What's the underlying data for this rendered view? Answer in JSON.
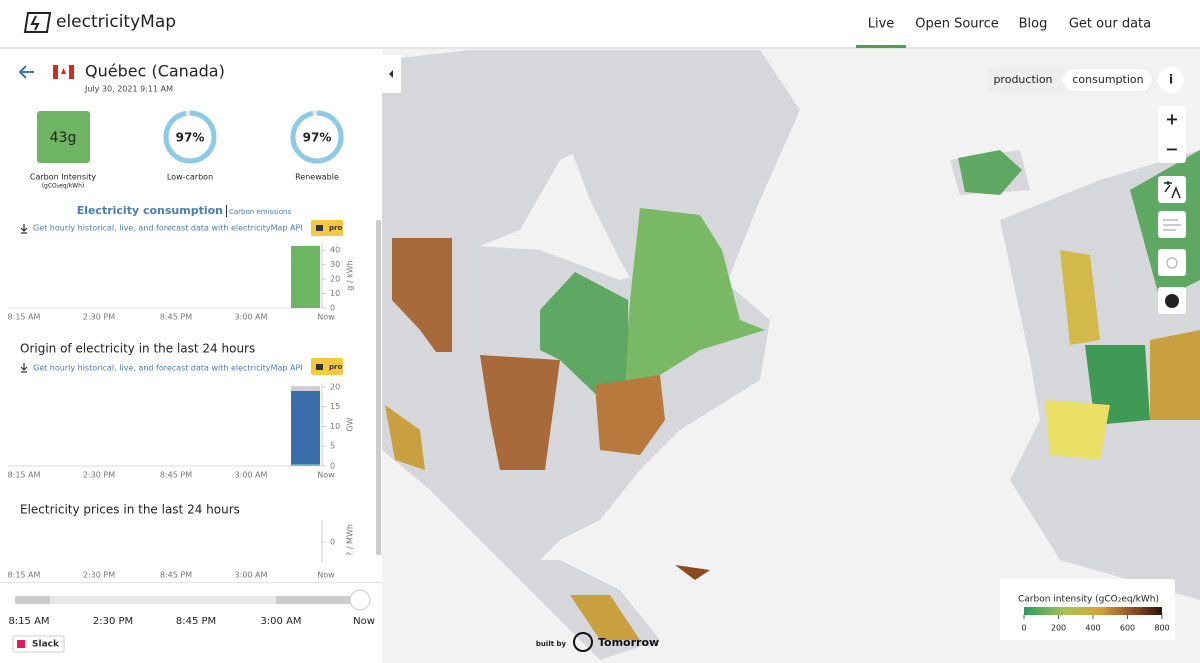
{
  "header": {
    "brand": "electricityMap",
    "nav": [
      "Live",
      "Open Source",
      "Blog",
      "Get our data"
    ]
  },
  "panel": {
    "zone": "Québec (Canada)",
    "datetime": "July 30, 2021 9:11 AM",
    "carbon_intensity": {
      "value": 43,
      "value_label": "43g",
      "label": "Carbon Intensity",
      "unit": "(gCO₂eq/kWh)",
      "color": "#6db562"
    },
    "low_carbon": {
      "value": 97,
      "value_label": "97%",
      "label": "Low-carbon"
    },
    "renewable": {
      "value": 97,
      "value_label": "97%",
      "label": "Renewable"
    },
    "tabs": [
      "Electricity consumption",
      "Carbon emissions"
    ],
    "api_link": "Get hourly historical, live, and forecast data with electricityMap API",
    "pro": "pro",
    "x_labels": [
      "8:15 AM",
      "2:30 PM",
      "8:45 PM",
      "3:00 AM",
      "Now"
    ],
    "consumption_chart": {
      "ylim": [
        0,
        45
      ],
      "yticks": [
        0,
        10,
        20,
        30,
        40
      ],
      "y_label": "g / kWh",
      "value": 43,
      "color": "#6db562"
    },
    "origin_chart": {
      "title": "Origin of electricity in the last 24 hours",
      "ylim": [
        0,
        21
      ],
      "yticks": [
        0,
        5,
        10,
        15,
        20
      ],
      "y_label": "GW",
      "segments": [
        {
          "value": 0.4,
          "color": "#6fc7c9"
        },
        {
          "value": 18.6,
          "color": "#3a6ea8"
        },
        {
          "value": 1.2,
          "color": "#cfcfcf"
        }
      ]
    },
    "prices_chart": {
      "title": "Electricity prices in the last 24 hours",
      "yticks": [
        0
      ],
      "y_label": "? / MWh"
    },
    "timeline": [
      "8:15 AM",
      "2:30 PM",
      "8:45 PM",
      "3:00 AM",
      "Now"
    ],
    "slack": "Slack"
  },
  "map": {
    "toggle": [
      "production",
      "consumption"
    ],
    "info": "i",
    "zoom": [
      "+",
      "−"
    ],
    "built_by": "built by",
    "sponsor": "Tomorrow",
    "legend": {
      "title": "Carbon intensity (gCO₂eq/kWh)",
      "ticks": [
        0,
        200,
        400,
        600,
        800
      ],
      "xlim": [
        0,
        800
      ]
    }
  }
}
